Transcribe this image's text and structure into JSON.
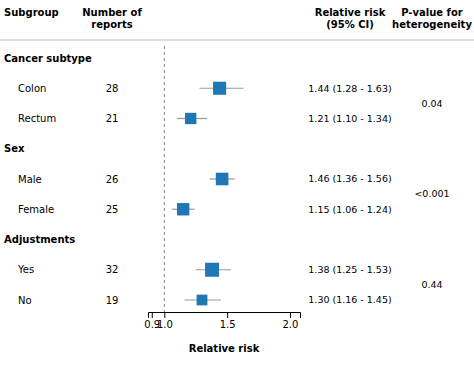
{
  "chart_data": {
    "type": "forest",
    "xlabel": "Relative risk",
    "col_subgroup": "Subgroup",
    "col_n": "Number of\nreports",
    "col_rr": "Relative risk\n(95% CI)",
    "col_phet": "P-value for\nheterogeneity",
    "groups": [
      {
        "header": "Cancer subtype",
        "rows": [
          {
            "name": "Colon",
            "n": 28,
            "rr": 1.44,
            "lo": 1.28,
            "hi": 1.63,
            "ci": "1.44 (1.28 - 1.63)"
          },
          {
            "name": "Rectum",
            "n": 21,
            "rr": 1.21,
            "lo": 1.1,
            "hi": 1.34,
            "ci": "1.21 (1.10 - 1.34)"
          }
        ],
        "phet": "0.04"
      },
      {
        "header": "Sex",
        "rows": [
          {
            "name": "Male",
            "n": 26,
            "rr": 1.46,
            "lo": 1.36,
            "hi": 1.56,
            "ci": "1.46 (1.36 - 1.56)"
          },
          {
            "name": "Female",
            "n": 25,
            "rr": 1.15,
            "lo": 1.06,
            "hi": 1.24,
            "ci": "1.15 (1.06 - 1.24)"
          }
        ],
        "phet": "<0.001"
      },
      {
        "header": "Adjustments",
        "rows": [
          {
            "name": "Yes",
            "n": 32,
            "rr": 1.38,
            "lo": 1.25,
            "hi": 1.53,
            "ci": "1.38 (1.25 - 1.53)"
          },
          {
            "name": "No",
            "n": 19,
            "rr": 1.3,
            "lo": 1.16,
            "hi": 1.45,
            "ci": "1.30 (1.16 - 1.45)"
          }
        ],
        "phet": "0.44"
      }
    ],
    "xlim": [
      0.87,
      2.08
    ],
    "xticks": [
      0.9,
      {
        "value": 1.0,
        "label": "1.0"
      },
      1.5,
      {
        "value": 2.0,
        "label": "2.0"
      }
    ],
    "reference": 1.0
  }
}
